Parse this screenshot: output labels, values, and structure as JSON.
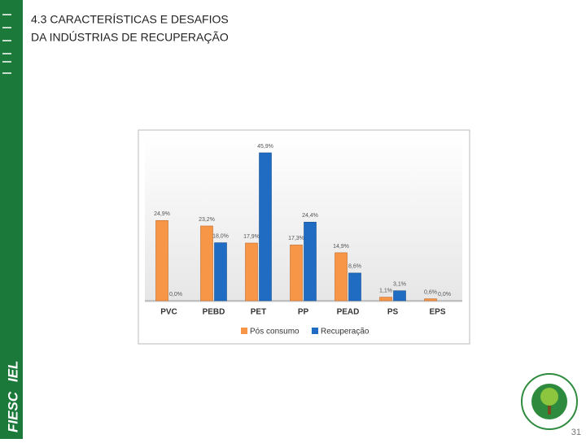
{
  "header": {
    "title": [
      "4.3 CARACTERÍSTICAS E DESAFIOS",
      "DA INDÚSTRIAS DE RECUPERAÇÃO"
    ]
  },
  "branding": {
    "logo": [
      "FIESC",
      "IEL"
    ]
  },
  "chart_data": {
    "type": "bar",
    "categories": [
      "PVC",
      "PEBD",
      "PET",
      "PP",
      "PEAD",
      "PS",
      "EPS"
    ],
    "series": [
      {
        "name": "Pós consumo",
        "color": "#f79646",
        "values": [
          24.9,
          23.2,
          17.9,
          17.3,
          14.9,
          1.1,
          0.6
        ],
        "value_labels": [
          "24,9%",
          "23,2%",
          "17,9%",
          "17,3%",
          "14,9%",
          "1,1%",
          "0,6%"
        ]
      },
      {
        "name": "Recuperação",
        "color": "#1f6cc2",
        "values": [
          0.0,
          18.0,
          45.9,
          24.4,
          8.6,
          3.1,
          0.0
        ],
        "value_labels": [
          "0,0%",
          "18,0%",
          "45,9%",
          "24,4%",
          "8,6%",
          "3,1%",
          "0,0%"
        ]
      }
    ],
    "legend": "bottom"
  },
  "footer": {
    "page_number": "31"
  }
}
